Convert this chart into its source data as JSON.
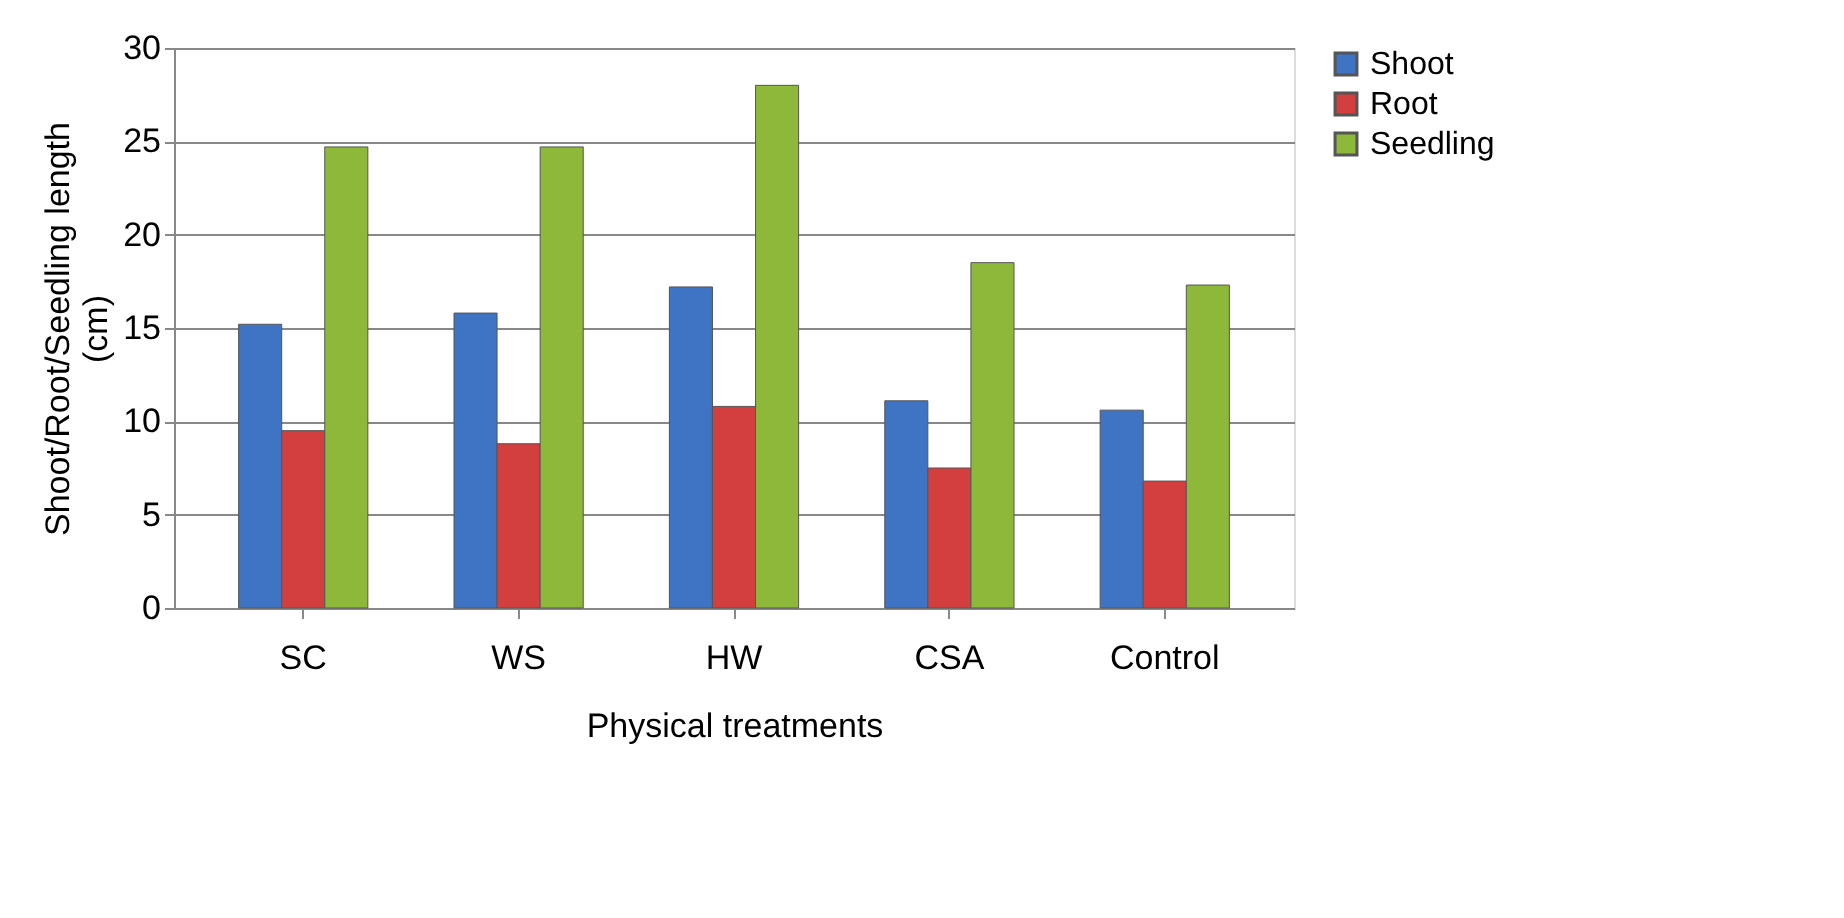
{
  "chart_data": {
    "type": "bar",
    "xlabel": "Physical treatments",
    "ylabel": "Shoot/Root/Seedling length (cm)",
    "categories": [
      "SC",
      "WS",
      "HW",
      "CSA",
      "Control"
    ],
    "series": [
      {
        "name": "Shoot",
        "color": "#3f73c4",
        "values": [
          15.2,
          15.8,
          17.2,
          11.1,
          10.6
        ]
      },
      {
        "name": "Root",
        "color": "#d33f3f",
        "values": [
          9.5,
          8.8,
          10.8,
          7.5,
          6.8
        ]
      },
      {
        "name": "Seedling",
        "color": "#8db83a",
        "values": [
          24.7,
          24.7,
          28.0,
          18.5,
          17.3
        ]
      }
    ],
    "ylim": [
      0,
      30
    ],
    "yticks": [
      0,
      5,
      10,
      15,
      20,
      25,
      30
    ],
    "grid": "y",
    "legend": "right"
  }
}
